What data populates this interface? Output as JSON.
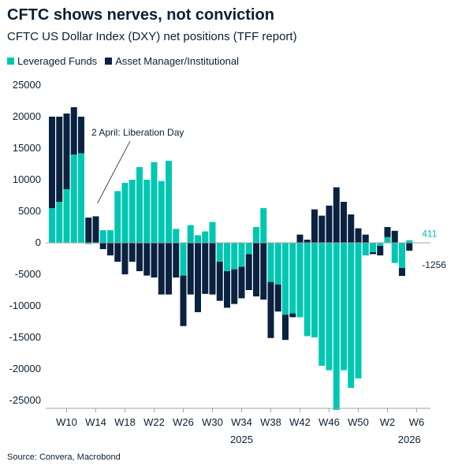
{
  "colors": {
    "leveraged": "#00c7b1",
    "asset": "#0a2240",
    "text": "#0b1f33",
    "axis": "#9aa3ab"
  },
  "source": "Source: Convera, Macrobond",
  "chart_data": {
    "type": "bar",
    "stacked": true,
    "title": "CFTC shows nerves, not conviction",
    "subtitle": "CFTC US Dollar Index (DXY) net positions (TFF report)",
    "legend_placement": "top-left",
    "grid": false,
    "ylim": [
      -26000,
      26000
    ],
    "y_ticks": [
      25000,
      20000,
      15000,
      10000,
      5000,
      0,
      -5000,
      -10000,
      -15000,
      -20000,
      -25000
    ],
    "x_ticks": [
      "W10",
      "W14",
      "W18",
      "W22",
      "W26",
      "W30",
      "W34",
      "W38",
      "W42",
      "W46",
      "W50",
      "W2",
      "W6"
    ],
    "x_tick_week_index": [
      2,
      6,
      10,
      14,
      18,
      22,
      26,
      30,
      34,
      38,
      42,
      46,
      50
    ],
    "year_labels": [
      {
        "text": "2025",
        "week_index": 26
      },
      {
        "text": "2026",
        "week_index": 49
      }
    ],
    "series": [
      {
        "name": "Leveraged Funds",
        "values": [
          5500,
          6500,
          8500,
          14000,
          14200,
          -200,
          -100,
          2000,
          2000,
          8200,
          9500,
          10000,
          12000,
          10000,
          12800,
          9800,
          13000,
          2200,
          -5200,
          2800,
          1200,
          1800,
          3300,
          -3000,
          -4500,
          -4200,
          -3800,
          -1800,
          2500,
          5500,
          -6200,
          -6600,
          -11400,
          -11200,
          -11800,
          -14800,
          -15000,
          -19500,
          -20200,
          -26500,
          -20200,
          -23000,
          -21500,
          -2000,
          -1500,
          -500,
          900,
          -3200,
          -4000,
          411
        ],
        "order": 0
      },
      {
        "name": "Asset Manager/Institutional",
        "values": [
          14500,
          13500,
          12000,
          7500,
          5800,
          4000,
          4200,
          -1000,
          -2000,
          -3000,
          -5000,
          -3000,
          -4500,
          -5200,
          -5500,
          -8200,
          -8200,
          -5500,
          -8000,
          -8200,
          -11000,
          -8100,
          -8200,
          -6200,
          -5800,
          -5500,
          -5000,
          -5700,
          -8500,
          -9000,
          -8900,
          -4300,
          -4000,
          -600,
          1300,
          500,
          5300,
          4300,
          5900,
          8800,
          6500,
          4500,
          2300,
          1300,
          -300,
          -1500,
          1600,
          1900,
          -1256,
          -1256
        ],
        "order": 1
      }
    ],
    "end_labels": [
      {
        "text": "411",
        "series": "Leveraged Funds"
      },
      {
        "text": "-1256",
        "series": "Asset Manager/Institutional"
      }
    ],
    "annotation": {
      "text": "2 April: Liberation Day",
      "week_index": 6
    }
  }
}
